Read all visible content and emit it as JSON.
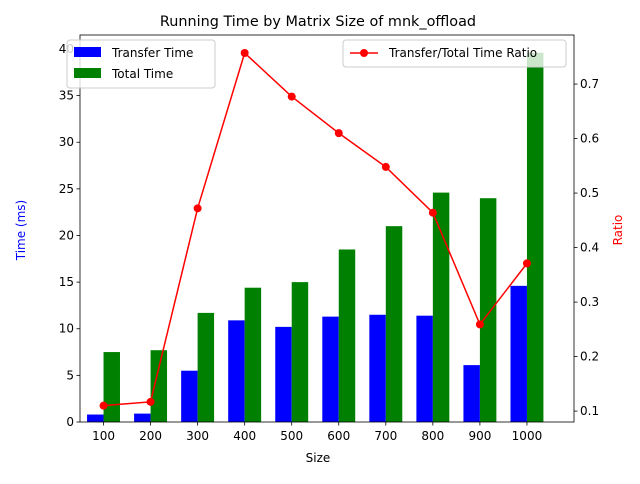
{
  "chart_data": {
    "type": "bar",
    "title": "Running Time by Matrix Size of mnk_offload",
    "xlabel": "Size",
    "ylabel": "Time (ms)",
    "y2label": "Ratio",
    "categories": [
      "100",
      "200",
      "300",
      "400",
      "500",
      "600",
      "700",
      "800",
      "900",
      "1000"
    ],
    "ylim": [
      0,
      41.5
    ],
    "y2lim": [
      0.08,
      0.79
    ],
    "yticks": [
      0,
      5,
      10,
      15,
      20,
      25,
      30,
      35,
      40
    ],
    "y2ticks": [
      0.1,
      0.2,
      0.3,
      0.4,
      0.5,
      0.6,
      0.7
    ],
    "series": [
      {
        "name": "Transfer Time",
        "axis": "left",
        "kind": "bar",
        "color": "#0000ff",
        "values": [
          0.8,
          0.9,
          5.5,
          10.9,
          10.2,
          11.3,
          11.5,
          11.4,
          6.1,
          14.6
        ]
      },
      {
        "name": "Total Time",
        "axis": "left",
        "kind": "bar",
        "color": "#008000",
        "values": [
          7.5,
          7.7,
          11.7,
          14.4,
          15.0,
          18.5,
          21.0,
          24.6,
          24.0,
          39.6
        ]
      },
      {
        "name": "Transfer/Total Time Ratio",
        "axis": "right",
        "kind": "line",
        "color": "#ff0000",
        "values": [
          0.11,
          0.117,
          0.472,
          0.757,
          0.677,
          0.61,
          0.548,
          0.464,
          0.259,
          0.371
        ]
      }
    ],
    "legends": [
      {
        "placement": "top-left",
        "entries": [
          "Transfer Time",
          "Total Time"
        ]
      },
      {
        "placement": "top-right",
        "entries": [
          "Transfer/Total Time Ratio"
        ]
      }
    ],
    "grid": false
  }
}
